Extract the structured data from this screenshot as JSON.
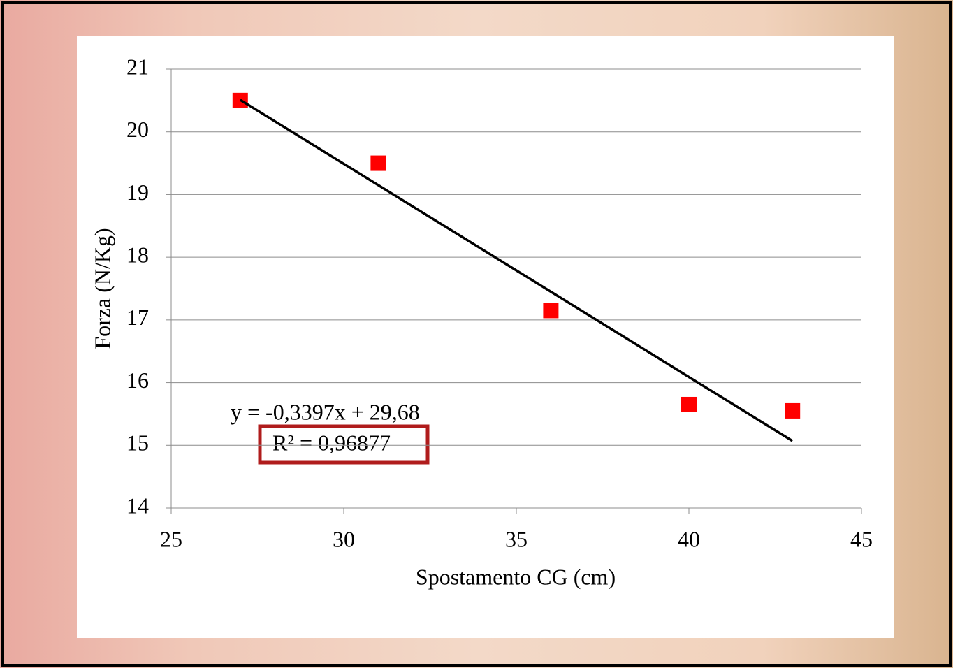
{
  "chart_data": {
    "type": "scatter",
    "x_label": "Spostamento CG (cm)",
    "y_label": "Forza (N/Kg)",
    "x": [
      27,
      31,
      36,
      40,
      43
    ],
    "values": [
      20.5,
      19.5,
      17.15,
      15.65,
      15.55
    ],
    "color": "#ff0000",
    "trendline": {
      "x": [
        27,
        43
      ],
      "values": [
        20.51,
        15.07
      ],
      "color": "#000000"
    },
    "equation": "y = -0,3397x + 29,68",
    "r_squared": "R² = 0,96877",
    "xlim": [
      25,
      45
    ],
    "xticks": [
      25,
      30,
      35,
      40,
      45
    ],
    "ylim": [
      14,
      21
    ],
    "yticks": [
      14,
      15,
      16,
      17,
      18,
      19,
      20,
      21
    ],
    "grid": true
  }
}
